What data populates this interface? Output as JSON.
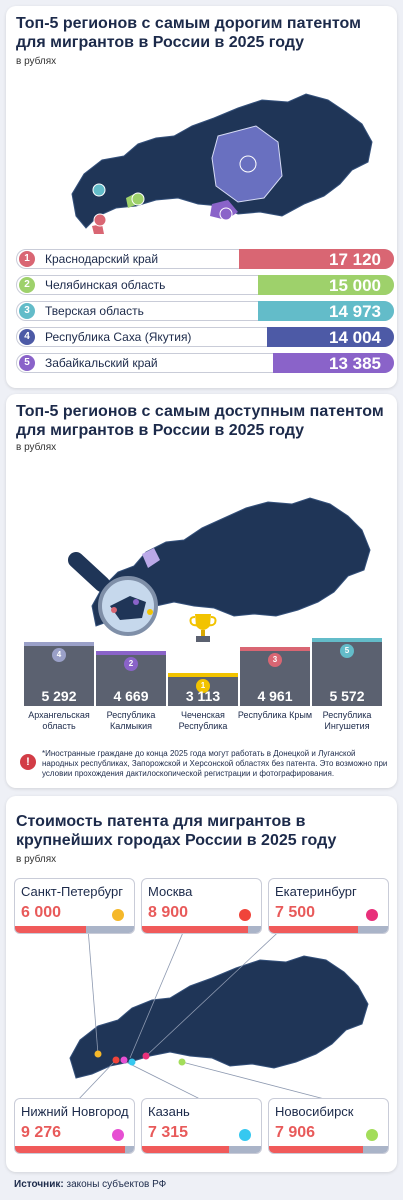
{
  "section1": {
    "title": "Топ-5 регионов с самым дорогим патентом для мигрантов в России в 2025 году",
    "unit": "в рублях"
  },
  "section2": {
    "title": "Топ-5 регионов с самым доступным патентом для мигрантов в России в 2025 году",
    "unit": "в рублях",
    "footnote": "*Иностранные граждане до конца 2025 года могут работать в Донецкой и Луганской народных республиках, Запорожской и Херсонской областях без патента. Это возможно при условии прохождения дактилоскопической регистрации и фотографирования.",
    "warn_icon": "!"
  },
  "section3": {
    "title": "Стоимость патента для мигрантов в крупнейших городах России в 2025 году",
    "unit": "в рублях"
  },
  "source": {
    "label": "Источник:",
    "text": "законы субъектов РФ"
  },
  "chart_data": [
    {
      "type": "bar",
      "title": "Топ-5 регионов с самым дорогим патентом для мигрантов в России в 2025 году",
      "ylabel": "в рублях",
      "categories": [
        "Краснодарский край",
        "Челябинская область",
        "Тверская область",
        "Республика Саха (Якутия)",
        "Забайкальский край"
      ],
      "ranks": [
        "1",
        "2",
        "3",
        "4",
        "5"
      ],
      "values": [
        17120,
        15000,
        14973,
        14004,
        13385
      ],
      "labels": [
        "17 120",
        "15 000",
        "14 973",
        "14 004",
        "13 385"
      ],
      "colors": [
        "#d96673",
        "#9ed16b",
        "#63bcc9",
        "#4d5aa6",
        "#8a63c9"
      ]
    },
    {
      "type": "bar",
      "title": "Топ-5 регионов с самым доступным патентом для мигрантов в России в 2025 году",
      "ylabel": "в рублях",
      "categories": [
        "Архангельская область",
        "Республика Калмыкия",
        "Чеченская Республика",
        "Республика Крым",
        "Республика Ингушетия"
      ],
      "ranks": [
        "4",
        "2",
        "1",
        "3",
        "5"
      ],
      "values": [
        5292,
        4669,
        3113,
        4961,
        5572
      ],
      "labels": [
        "5 292",
        "4 669",
        "3 113",
        "4 961",
        "5 572"
      ],
      "colors": [
        "#9aa0c8",
        "#8a63c9",
        "#f2c300",
        "#d96673",
        "#63bcc9"
      ]
    },
    {
      "type": "bar",
      "title": "Стоимость патента для мигрантов в крупнейших городах России в 2025 году",
      "ylabel": "в рублях",
      "categories": [
        "Санкт-Петербург",
        "Москва",
        "Екатеринбург",
        "Нижний Новгород",
        "Казань",
        "Новосибирск"
      ],
      "values": [
        6000,
        8900,
        7500,
        9276,
        7315,
        7906
      ],
      "labels": [
        "6 000",
        "8 900",
        "7 500",
        "9 276",
        "7 315",
        "7 906"
      ],
      "colors": [
        "#f5b82a",
        "#f0443a",
        "#e8307a",
        "#e64fd2",
        "#36c8f0",
        "#a3dd5a"
      ]
    }
  ]
}
